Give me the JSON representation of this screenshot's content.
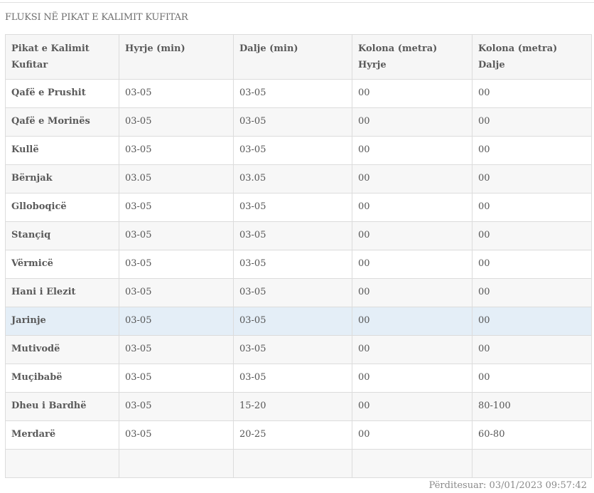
{
  "title": "FLUKSI NË PIKAT E KALIMIT KUFITAR",
  "table": {
    "headers": [
      "Pikat e Kalimit Kufitar",
      "Hyrje (min)",
      "Dalje (min)",
      "Kolona (metra) Hyrje",
      "Kolona (metra) Dalje"
    ],
    "rows": [
      [
        "Qafë e Prushit",
        "03-05",
        "03-05",
        "00",
        "00"
      ],
      [
        "Qafë e Morinës",
        "03-05",
        "03-05",
        "00",
        "00"
      ],
      [
        "Kullë",
        "03-05",
        "03-05",
        "00",
        "00"
      ],
      [
        "Bërnjak",
        "03.05",
        "03.05",
        "00",
        "00"
      ],
      [
        "Glloboqicë",
        "03-05",
        "03-05",
        "00",
        "00"
      ],
      [
        "Stançiq",
        "03-05",
        "03-05",
        "00",
        "00"
      ],
      [
        "Vërmicë",
        "03-05",
        "03-05",
        "00",
        "00"
      ],
      [
        "Hani i Elezit",
        "03-05",
        "03-05",
        "00",
        "00"
      ],
      [
        "Jarinje",
        "03-05",
        "03-05",
        "00",
        "00"
      ],
      [
        "Mutivodë",
        "03-05",
        "03-05",
        "00",
        "00"
      ],
      [
        "Muçibabë",
        "03-05",
        "03-05",
        "00",
        "00"
      ],
      [
        "Dheu i Bardhë",
        "03-05",
        "15-20",
        "00",
        "80-100"
      ],
      [
        "Merdarë",
        "03-05",
        "20-25",
        "00",
        "60-80"
      ],
      [
        "",
        "",
        "",
        "",
        ""
      ]
    ],
    "highlighted_row": 8
  },
  "footer": "Përditesuar: 03/01/2023 09:57:42",
  "colors": {
    "highlight": "#e4eef7",
    "stripe": "#f7f7f7",
    "border": "#dcdcdc"
  }
}
